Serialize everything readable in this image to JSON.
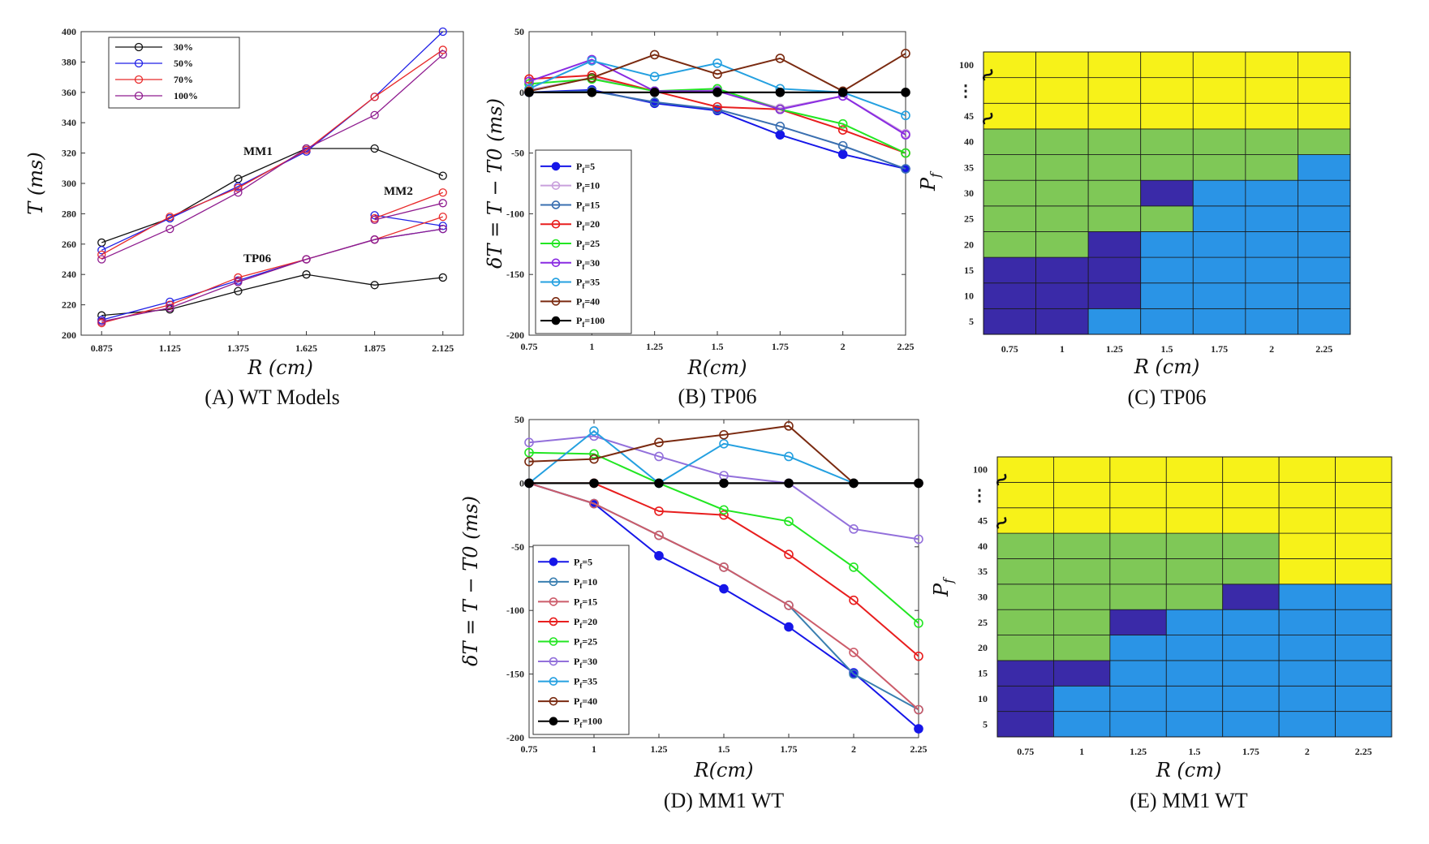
{
  "colors": {
    "yellow": "#f7f219",
    "green": "#7fc857",
    "blue": "#2a94e6",
    "purple": "#3a2aa8"
  },
  "chart_data": [
    {
      "id": "A",
      "type": "line",
      "caption": "(A) WT Models",
      "xlabel": "R (cm)",
      "ylabel": "T (ms)",
      "categories": [
        "0.875",
        "1.125",
        "1.375",
        "1.625",
        "1.875",
        "2.125"
      ],
      "x": [
        0.875,
        1.125,
        1.375,
        1.625,
        1.875,
        2.125
      ],
      "xlim": [
        0.8,
        2.2
      ],
      "ylim": [
        200,
        400
      ],
      "yticks": [
        200,
        220,
        240,
        260,
        280,
        300,
        320,
        340,
        360,
        380,
        400
      ],
      "legend": [
        "30%",
        "50%",
        "70%",
        "100%"
      ],
      "legend_position": "top-left",
      "annotations": [
        "MM1",
        "MM2",
        "TP06"
      ],
      "series": [
        {
          "name": "30%",
          "group": "MM1",
          "color": "#111111",
          "x": [
            0.875,
            1.125,
            1.375,
            1.625,
            1.875,
            2.125
          ],
          "values": [
            261,
            277,
            303,
            323,
            323,
            305
          ]
        },
        {
          "name": "50%",
          "group": "MM1",
          "color": "#1f1fe6",
          "x": [
            0.875,
            1.125,
            1.375,
            1.625,
            1.875,
            2.125
          ],
          "values": [
            256,
            277,
            298,
            321,
            357,
            400
          ]
        },
        {
          "name": "70%",
          "group": "MM1",
          "color": "#e82a2a",
          "x": [
            0.875,
            1.125,
            1.375,
            1.625,
            1.875,
            2.125
          ],
          "values": [
            253,
            278,
            297,
            322,
            357,
            388
          ]
        },
        {
          "name": "100%",
          "group": "MM1",
          "color": "#8f1c8f",
          "x": [
            0.875,
            1.125,
            1.375,
            1.625,
            1.875,
            2.125
          ],
          "values": [
            250,
            270,
            294,
            323,
            345,
            385
          ]
        },
        {
          "name": "50%",
          "group": "MM2",
          "color": "#1f1fe6",
          "x": [
            1.875,
            2.125
          ],
          "values": [
            279,
            272
          ]
        },
        {
          "name": "70%",
          "group": "MM2",
          "color": "#e82a2a",
          "x": [
            1.875,
            2.125
          ],
          "values": [
            277,
            294
          ]
        },
        {
          "name": "100%",
          "group": "MM2",
          "color": "#8f1c8f",
          "x": [
            1.875,
            2.125
          ],
          "values": [
            276,
            287
          ]
        },
        {
          "name": "30%",
          "group": "TP06",
          "color": "#111111",
          "x": [
            0.875,
            1.125,
            1.375,
            1.625,
            1.875,
            2.125
          ],
          "values": [
            213,
            217,
            229,
            240,
            233,
            238
          ]
        },
        {
          "name": "50%",
          "group": "TP06",
          "color": "#1f1fe6",
          "x": [
            0.875,
            1.125,
            1.375,
            1.625,
            1.875,
            2.125
          ],
          "values": [
            210,
            222,
            236,
            250,
            263,
            270
          ]
        },
        {
          "name": "70%",
          "group": "TP06",
          "color": "#e82a2a",
          "x": [
            0.875,
            1.125,
            1.375,
            1.625,
            1.875,
            2.125
          ],
          "values": [
            208,
            220,
            238,
            250,
            263,
            278
          ]
        },
        {
          "name": "100%",
          "group": "TP06",
          "color": "#8f1c8f",
          "x": [
            0.875,
            1.125,
            1.375,
            1.625,
            1.875,
            2.125
          ],
          "values": [
            209,
            218,
            235,
            250,
            263,
            270
          ]
        }
      ]
    },
    {
      "id": "B",
      "type": "line",
      "caption": "(B) TP06",
      "xlabel": "R(cm)",
      "ylabel": "δT = T − T0 (ms)",
      "x": [
        0.75,
        1,
        1.25,
        1.5,
        1.75,
        2,
        2.25
      ],
      "xticks": [
        "0.75",
        "1",
        "1.25",
        "1.5",
        "1.75",
        "2",
        "2.25"
      ],
      "xlim": [
        0.75,
        2.25
      ],
      "ylim": [
        -200,
        50
      ],
      "yticks": [
        -200,
        -150,
        -100,
        -50,
        0,
        50
      ],
      "legend_position": "bottom-left",
      "series": [
        {
          "name": "5",
          "color": "#1616e8",
          "filled": true,
          "values": [
            0,
            2,
            -9,
            -15,
            -35,
            -51,
            -63
          ]
        },
        {
          "name": "10",
          "color": "#c9a0dc",
          "filled": false,
          "values": [
            2,
            12,
            1,
            2,
            -13,
            -3,
            -34
          ]
        },
        {
          "name": "15",
          "color": "#3a6fb0",
          "filled": false,
          "values": [
            0,
            1,
            -8,
            -14,
            -28,
            -44,
            -63
          ]
        },
        {
          "name": "20",
          "color": "#e81e1e",
          "filled": false,
          "values": [
            11,
            14,
            1,
            -12,
            -14,
            -31,
            -50
          ]
        },
        {
          "name": "25",
          "color": "#22e622",
          "filled": false,
          "values": [
            7,
            11,
            1,
            3,
            -14,
            -26,
            -50
          ]
        },
        {
          "name": "30",
          "color": "#8a2be2",
          "filled": false,
          "values": [
            9,
            27,
            1,
            1,
            -14,
            -3,
            -35
          ]
        },
        {
          "name": "35",
          "color": "#24a0e0",
          "filled": false,
          "values": [
            3,
            26,
            13,
            24,
            3,
            0,
            -19
          ]
        },
        {
          "name": "40",
          "color": "#7a2a10",
          "filled": false,
          "values": [
            1,
            12,
            31,
            15,
            28,
            1,
            32
          ]
        },
        {
          "name": "100",
          "color": "#000000",
          "filled": true,
          "values": [
            0,
            0,
            0,
            0,
            0,
            0,
            0
          ]
        }
      ]
    },
    {
      "id": "C",
      "type": "heatmap",
      "caption": "(C) TP06",
      "xlabel": "R (cm)",
      "ylabel": "Pf",
      "xticks": [
        "0.75",
        "1",
        "1.25",
        "1.5",
        "1.75",
        "2",
        "2.25"
      ],
      "yticks": [
        "5",
        "10",
        "15",
        "20",
        "25",
        "30",
        "35",
        "40",
        "45",
        "⋮",
        "100"
      ],
      "legend": "none",
      "rows_bottom_to_top": [
        [
          "P",
          "P",
          "B",
          "B",
          "B",
          "B",
          "B"
        ],
        [
          "P",
          "P",
          "P",
          "B",
          "B",
          "B",
          "B"
        ],
        [
          "P",
          "P",
          "P",
          "B",
          "B",
          "B",
          "B"
        ],
        [
          "G",
          "G",
          "P",
          "B",
          "B",
          "B",
          "B"
        ],
        [
          "G",
          "G",
          "G",
          "G",
          "B",
          "B",
          "B"
        ],
        [
          "G",
          "G",
          "G",
          "P",
          "B",
          "B",
          "B"
        ],
        [
          "G",
          "G",
          "G",
          "G",
          "G",
          "G",
          "B"
        ],
        [
          "G",
          "G",
          "G",
          "G",
          "G",
          "G",
          "G"
        ],
        [
          "Y",
          "Y",
          "Y",
          "Y",
          "Y",
          "Y",
          "Y"
        ],
        [
          "Y",
          "Y",
          "Y",
          "Y",
          "Y",
          "Y",
          "Y"
        ],
        [
          "Y",
          "Y",
          "Y",
          "Y",
          "Y",
          "Y",
          "Y"
        ]
      ]
    },
    {
      "id": "D",
      "type": "line",
      "caption": "(D) MM1 WT",
      "xlabel": "R(cm)",
      "ylabel": "δT = T − T0 (ms)",
      "x": [
        0.75,
        1,
        1.25,
        1.5,
        1.75,
        2,
        2.25
      ],
      "xticks": [
        "0.75",
        "1",
        "1.25",
        "1.5",
        "1.75",
        "2",
        "2.25"
      ],
      "xlim": [
        0.75,
        2.25
      ],
      "ylim": [
        -200,
        50
      ],
      "yticks": [
        -200,
        -150,
        -100,
        -50,
        0,
        50
      ],
      "legend_position": "bottom-left",
      "series": [
        {
          "name": "5",
          "color": "#1616e8",
          "filled": true,
          "values": [
            0,
            -16,
            -57,
            -83,
            -113,
            -149,
            -193
          ]
        },
        {
          "name": "10",
          "color": "#3a7fb0",
          "filled": false,
          "values": [
            0,
            -16,
            -41,
            -66,
            -96,
            -150,
            -178
          ]
        },
        {
          "name": "15",
          "color": "#cc5c6a",
          "filled": false,
          "values": [
            0,
            -16,
            -41,
            -66,
            -96,
            -133,
            -178
          ]
        },
        {
          "name": "20",
          "color": "#e81e1e",
          "filled": false,
          "values": [
            0,
            0,
            -22,
            -25,
            -56,
            -92,
            -136
          ]
        },
        {
          "name": "25",
          "color": "#22e622",
          "filled": false,
          "values": [
            24,
            23,
            0,
            -21,
            -30,
            -66,
            -110
          ]
        },
        {
          "name": "30",
          "color": "#9370db",
          "filled": false,
          "values": [
            32,
            37,
            21,
            6,
            0,
            -36,
            -44
          ]
        },
        {
          "name": "35",
          "color": "#24a0e0",
          "filled": false,
          "values": [
            0,
            41,
            0,
            31,
            21,
            0,
            0
          ]
        },
        {
          "name": "40",
          "color": "#7a2a10",
          "filled": false,
          "values": [
            17,
            19,
            32,
            38,
            45,
            0,
            0
          ]
        },
        {
          "name": "100",
          "color": "#000000",
          "filled": true,
          "values": [
            0,
            0,
            0,
            0,
            0,
            0,
            0
          ]
        }
      ]
    },
    {
      "id": "E",
      "type": "heatmap",
      "caption": "(E) MM1 WT",
      "xlabel": "R (cm)",
      "ylabel": "Pf",
      "xticks": [
        "0.75",
        "1",
        "1.25",
        "1.5",
        "1.75",
        "2",
        "2.25"
      ],
      "yticks": [
        "5",
        "10",
        "15",
        "20",
        "25",
        "30",
        "35",
        "40",
        "45",
        "⋮",
        "100"
      ],
      "legend": "none",
      "rows_bottom_to_top": [
        [
          "P",
          "B",
          "B",
          "B",
          "B",
          "B",
          "B"
        ],
        [
          "P",
          "B",
          "B",
          "B",
          "B",
          "B",
          "B"
        ],
        [
          "P",
          "P",
          "B",
          "B",
          "B",
          "B",
          "B"
        ],
        [
          "G",
          "G",
          "B",
          "B",
          "B",
          "B",
          "B"
        ],
        [
          "G",
          "G",
          "P",
          "B",
          "B",
          "B",
          "B"
        ],
        [
          "G",
          "G",
          "G",
          "G",
          "P",
          "B",
          "B"
        ],
        [
          "G",
          "G",
          "G",
          "G",
          "G",
          "Y",
          "Y"
        ],
        [
          "G",
          "G",
          "G",
          "G",
          "G",
          "Y",
          "Y"
        ],
        [
          "Y",
          "Y",
          "Y",
          "Y",
          "Y",
          "Y",
          "Y"
        ],
        [
          "Y",
          "Y",
          "Y",
          "Y",
          "Y",
          "Y",
          "Y"
        ],
        [
          "Y",
          "Y",
          "Y",
          "Y",
          "Y",
          "Y",
          "Y"
        ]
      ]
    }
  ]
}
